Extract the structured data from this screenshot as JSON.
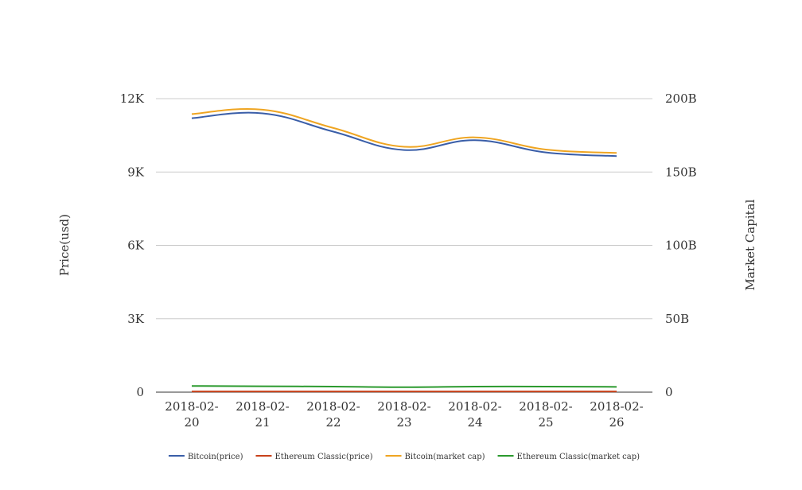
{
  "chart_data": {
    "type": "line",
    "x": [
      "2018-02-20",
      "2018-02-21",
      "2018-02-22",
      "2018-02-23",
      "2018-02-24",
      "2018-02-25",
      "2018-02-26"
    ],
    "x_tick_lines": [
      [
        "2018-02-",
        "20"
      ],
      [
        "2018-02-",
        "21"
      ],
      [
        "2018-02-",
        "22"
      ],
      [
        "2018-02-",
        "23"
      ],
      [
        "2018-02-",
        "24"
      ],
      [
        "2018-02-",
        "25"
      ],
      [
        "2018-02-",
        "26"
      ]
    ],
    "ylabel": "Price(usd)",
    "y2label": "Market Capital",
    "ylim": [
      0,
      12000
    ],
    "y2lim": [
      0,
      200000000000
    ],
    "yticks": [
      {
        "value": 0,
        "label": "0"
      },
      {
        "value": 3000,
        "label": "3K"
      },
      {
        "value": 6000,
        "label": "6K"
      },
      {
        "value": 9000,
        "label": "9K"
      },
      {
        "value": 12000,
        "label": "12K"
      }
    ],
    "y2ticks": [
      {
        "value": 0,
        "label": "0"
      },
      {
        "value": 50000000000,
        "label": "50B"
      },
      {
        "value": 100000000000,
        "label": "100B"
      },
      {
        "value": 150000000000,
        "label": "150B"
      },
      {
        "value": 200000000000,
        "label": "200B"
      }
    ],
    "grid": true,
    "legend_position": "bottom",
    "series": [
      {
        "name": "Bitcoin(price)",
        "axis": "left",
        "color": "#3a5ea8",
        "values": [
          11200,
          11400,
          10650,
          9900,
          10300,
          9800,
          9650
        ]
      },
      {
        "name": "Ethereum Classic(price)",
        "axis": "right",
        "color": "#c8421b",
        "values": [
          500000000,
          500000000,
          480000000,
          460000000,
          470000000,
          470000000,
          460000000
        ]
      },
      {
        "name": "Bitcoin(market cap)",
        "axis": "right",
        "color": "#efa522",
        "values": [
          189500000000,
          192500000000,
          180000000000,
          167200000000,
          173600000000,
          165300000000,
          163000000000
        ]
      },
      {
        "name": "Ethereum Classic(market cap)",
        "axis": "right",
        "color": "#2b9a2e",
        "values": [
          4200000000,
          4000000000,
          3800000000,
          3400000000,
          3800000000,
          3800000000,
          3600000000
        ]
      }
    ]
  }
}
